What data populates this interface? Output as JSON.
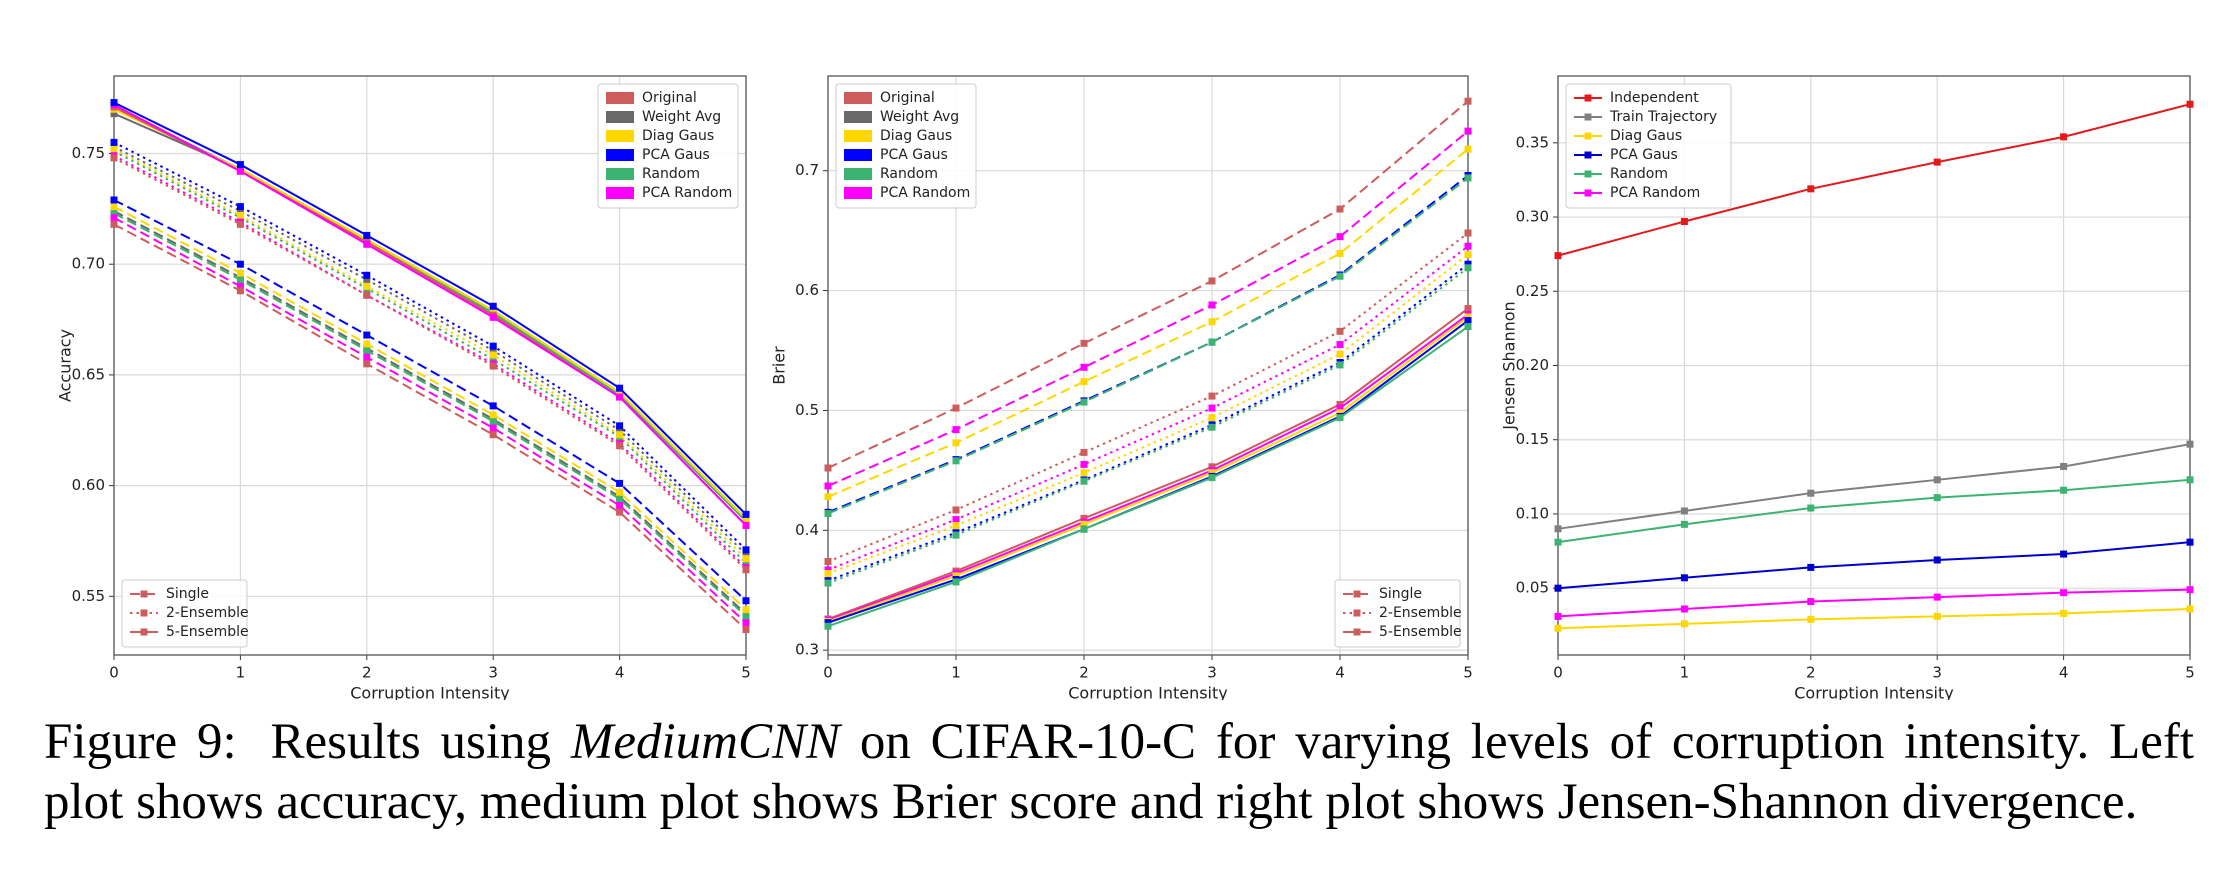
{
  "chart_data": [
    {
      "type": "line",
      "ylabel": "Accuracy",
      "xlabel": "Corruption Intensity",
      "x": [
        0,
        1,
        2,
        3,
        4,
        5
      ],
      "xlim": [
        0,
        5
      ],
      "xticks": [
        0,
        1,
        2,
        3,
        4,
        5
      ],
      "ylim": [
        0.5235,
        0.785
      ],
      "yticks": [
        0.55,
        {
          "value": 0.6,
          "label": "0.60"
        },
        0.65,
        {
          "value": 0.7,
          "label": "0.70"
        },
        0.75
      ],
      "grid": true,
      "legend": "upper right",
      "ensemble_legend": "lower left",
      "methods": [
        {
          "name": "Original",
          "color": "#cd5c5c"
        },
        {
          "name": "Weight Avg",
          "color": "#696969"
        },
        {
          "name": "Diag Gaus",
          "color": "#ffd700"
        },
        {
          "name": "PCA Gaus",
          "color": "#0000ff"
        },
        {
          "name": "Random",
          "color": "#3cb371"
        },
        {
          "name": "PCA Random",
          "color": "#ff00ff"
        }
      ],
      "ensembles": [
        {
          "name": "Single",
          "linestyle": "dashed",
          "color": "#cd5c5c"
        },
        {
          "name": "2-Ensemble",
          "linestyle": "dotted",
          "color": "#cd5c5c"
        },
        {
          "name": "5-Ensemble",
          "linestyle": "solid",
          "color": "#cd5c5c"
        }
      ],
      "series": [
        {
          "method": "Weight Avg",
          "ensemble": "Single",
          "values": [
            0.724,
            0.694,
            0.662,
            0.63,
            0.595,
            0.542
          ]
        },
        {
          "method": "Random",
          "ensemble": "Single",
          "values": [
            0.723,
            0.693,
            0.661,
            0.629,
            0.594,
            0.541
          ]
        },
        {
          "method": "Diag Gaus",
          "ensemble": "Single",
          "values": [
            0.726,
            0.696,
            0.664,
            0.632,
            0.597,
            0.544
          ]
        },
        {
          "method": "PCA Random",
          "ensemble": "Single",
          "values": [
            0.721,
            0.69,
            0.658,
            0.626,
            0.591,
            0.538
          ]
        },
        {
          "method": "Original",
          "ensemble": "Single",
          "values": [
            0.718,
            0.688,
            0.655,
            0.623,
            0.588,
            0.535
          ]
        },
        {
          "method": "PCA Gaus",
          "ensemble": "Single",
          "values": [
            0.729,
            0.7,
            0.668,
            0.636,
            0.601,
            0.548
          ]
        },
        {
          "method": "Weight Avg",
          "ensemble": "2-Ensemble",
          "values": [
            0.753,
            0.724,
            0.693,
            0.661,
            0.625,
            0.569
          ]
        },
        {
          "method": "Random",
          "ensemble": "2-Ensemble",
          "values": [
            0.751,
            0.721,
            0.689,
            0.657,
            0.622,
            0.565
          ]
        },
        {
          "method": "Diag Gaus",
          "ensemble": "2-Ensemble",
          "values": [
            0.752,
            0.722,
            0.69,
            0.659,
            0.623,
            0.567
          ]
        },
        {
          "method": "PCA Random",
          "ensemble": "2-Ensemble",
          "values": [
            0.749,
            0.719,
            0.686,
            0.655,
            0.619,
            0.563
          ]
        },
        {
          "method": "Original",
          "ensemble": "2-Ensemble",
          "values": [
            0.748,
            0.718,
            0.686,
            0.654,
            0.618,
            0.562
          ]
        },
        {
          "method": "PCA Gaus",
          "ensemble": "2-Ensemble",
          "values": [
            0.755,
            0.726,
            0.695,
            0.663,
            0.627,
            0.571
          ]
        },
        {
          "method": "Weight Avg",
          "ensemble": "5-Ensemble",
          "values": [
            0.768,
            0.743,
            0.711,
            0.679,
            0.642,
            0.585
          ]
        },
        {
          "method": "Random",
          "ensemble": "5-Ensemble",
          "values": [
            0.771,
            0.743,
            0.711,
            0.678,
            0.641,
            0.584
          ]
        },
        {
          "method": "Diag Gaus",
          "ensemble": "5-Ensemble",
          "values": [
            0.77,
            0.743,
            0.711,
            0.679,
            0.642,
            0.585
          ]
        },
        {
          "method": "Original",
          "ensemble": "5-Ensemble",
          "values": [
            0.771,
            0.742,
            0.71,
            0.677,
            0.64,
            0.582
          ]
        },
        {
          "method": "PCA Random",
          "ensemble": "5-Ensemble",
          "values": [
            0.772,
            0.742,
            0.709,
            0.676,
            0.64,
            0.582
          ]
        },
        {
          "method": "PCA Gaus",
          "ensemble": "5-Ensemble",
          "values": [
            0.773,
            0.745,
            0.713,
            0.681,
            0.644,
            0.587
          ]
        }
      ]
    },
    {
      "type": "line",
      "ylabel": "Brier",
      "xlabel": "Corruption Intensity",
      "x": [
        0,
        1,
        2,
        3,
        4,
        5
      ],
      "xlim": [
        0,
        5
      ],
      "xticks": [
        0,
        1,
        2,
        3,
        4,
        5
      ],
      "ylim": [
        0.296,
        0.779
      ],
      "yticks": [
        0.3,
        0.4,
        0.5,
        0.6,
        0.7
      ],
      "grid": true,
      "legend": "upper left",
      "ensemble_legend": "lower right",
      "methods": [
        {
          "name": "Original",
          "color": "#cd5c5c"
        },
        {
          "name": "Weight Avg",
          "color": "#696969"
        },
        {
          "name": "Diag Gaus",
          "color": "#ffd700"
        },
        {
          "name": "PCA Gaus",
          "color": "#0000ff"
        },
        {
          "name": "Random",
          "color": "#3cb371"
        },
        {
          "name": "PCA Random",
          "color": "#ff00ff"
        }
      ],
      "ensembles": [
        {
          "name": "Single",
          "linestyle": "dashed",
          "color": "#cd5c5c"
        },
        {
          "name": "2-Ensemble",
          "linestyle": "dotted",
          "color": "#cd5c5c"
        },
        {
          "name": "5-Ensemble",
          "linestyle": "solid",
          "color": "#cd5c5c"
        }
      ],
      "series": [
        {
          "method": "Original",
          "ensemble": "Single",
          "values": [
            0.452,
            0.502,
            0.556,
            0.608,
            0.668,
            0.758
          ]
        },
        {
          "method": "PCA Random",
          "ensemble": "Single",
          "values": [
            0.437,
            0.484,
            0.536,
            0.588,
            0.645,
            0.733
          ]
        },
        {
          "method": "Diag Gaus",
          "ensemble": "Single",
          "values": [
            0.428,
            0.473,
            0.524,
            0.574,
            0.631,
            0.718
          ]
        },
        {
          "method": "PCA Gaus",
          "ensemble": "Single",
          "values": [
            0.415,
            0.459,
            0.508,
            0.557,
            0.613,
            0.696
          ]
        },
        {
          "method": "Random",
          "ensemble": "Single",
          "values": [
            0.414,
            0.458,
            0.507,
            0.557,
            0.612,
            0.694
          ]
        },
        {
          "method": "Original",
          "ensemble": "2-Ensemble",
          "values": [
            0.374,
            0.417,
            0.465,
            0.512,
            0.566,
            0.648
          ]
        },
        {
          "method": "PCA Random",
          "ensemble": "2-Ensemble",
          "values": [
            0.367,
            0.409,
            0.455,
            0.502,
            0.555,
            0.637
          ]
        },
        {
          "method": "Diag Gaus",
          "ensemble": "2-Ensemble",
          "values": [
            0.364,
            0.404,
            0.448,
            0.494,
            0.547,
            0.63
          ]
        },
        {
          "method": "PCA Gaus",
          "ensemble": "2-Ensemble",
          "values": [
            0.358,
            0.398,
            0.442,
            0.488,
            0.54,
            0.622
          ]
        },
        {
          "method": "Random",
          "ensemble": "2-Ensemble",
          "values": [
            0.356,
            0.396,
            0.441,
            0.486,
            0.538,
            0.619
          ]
        },
        {
          "method": "Original",
          "ensemble": "5-Ensemble",
          "values": [
            0.326,
            0.366,
            0.41,
            0.453,
            0.505,
            0.585
          ]
        },
        {
          "method": "PCA Random",
          "ensemble": "5-Ensemble",
          "values": [
            0.325,
            0.364,
            0.407,
            0.45,
            0.502,
            0.58
          ]
        },
        {
          "method": "Diag Gaus",
          "ensemble": "5-Ensemble",
          "values": [
            0.324,
            0.362,
            0.405,
            0.448,
            0.498,
            0.578
          ]
        },
        {
          "method": "PCA Gaus",
          "ensemble": "5-Ensemble",
          "values": [
            0.323,
            0.359,
            0.401,
            0.445,
            0.495,
            0.575
          ]
        },
        {
          "method": "Random",
          "ensemble": "5-Ensemble",
          "values": [
            0.32,
            0.357,
            0.401,
            0.444,
            0.494,
            0.57
          ]
        }
      ]
    },
    {
      "type": "line",
      "ylabel": "Jensen Shannon",
      "xlabel": "Corruption Intensity",
      "x": [
        0,
        1,
        2,
        3,
        4,
        5
      ],
      "xlim": [
        0,
        5
      ],
      "xticks": [
        0,
        1,
        2,
        3,
        4,
        5
      ],
      "ylim": [
        0.005,
        0.395
      ],
      "yticks": [
        0.05,
        {
          "value": 0.1,
          "label": "0.10"
        },
        0.15,
        {
          "value": 0.2,
          "label": "0.20"
        },
        0.25,
        {
          "value": 0.3,
          "label": "0.30"
        },
        0.35
      ],
      "grid": true,
      "legend": "upper left",
      "series": [
        {
          "name": "Independent",
          "color": "#e31a1c",
          "values": [
            0.274,
            0.297,
            0.319,
            0.337,
            0.354,
            0.376
          ]
        },
        {
          "name": "Train Trajectory",
          "color": "#808080",
          "values": [
            0.09,
            0.102,
            0.114,
            0.123,
            0.132,
            0.147
          ]
        },
        {
          "name": "Diag Gaus",
          "color": "#ffd700",
          "values": [
            0.023,
            0.026,
            0.029,
            0.031,
            0.033,
            0.036
          ]
        },
        {
          "name": "PCA Gaus",
          "color": "#0000cd",
          "values": [
            0.05,
            0.057,
            0.064,
            0.069,
            0.073,
            0.081
          ]
        },
        {
          "name": "Random",
          "color": "#3cb371",
          "values": [
            0.081,
            0.093,
            0.104,
            0.111,
            0.116,
            0.123
          ]
        },
        {
          "name": "PCA Random",
          "color": "#ff00ff",
          "values": [
            0.031,
            0.036,
            0.041,
            0.044,
            0.047,
            0.049
          ]
        }
      ]
    }
  ],
  "caption": {
    "label": "Figure 9:",
    "before": "Results using",
    "emphasis": "MediumCNN",
    "after": "on CIFAR-10-C for varying levels of corruption intensity. Left plot shows accuracy, medium plot shows Brier score and right plot shows Jensen-Shannon divergence."
  }
}
